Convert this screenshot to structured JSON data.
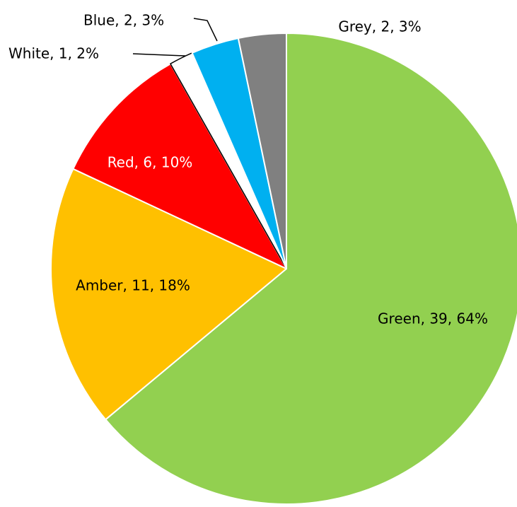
{
  "chart_data": {
    "type": "pie",
    "title": "",
    "start_angle_deg": 0,
    "direction": "clockwise",
    "slices": [
      {
        "category": "Green",
        "value": 39,
        "percent": "64%",
        "label": "Green, 39, 64%",
        "color": "#92d050",
        "label_color": "#000000"
      },
      {
        "category": "Amber",
        "value": 11,
        "percent": "18%",
        "label": "Amber, 11, 18%",
        "color": "#ffc000",
        "label_color": "#000000"
      },
      {
        "category": "Red",
        "value": 6,
        "percent": "10%",
        "label": "Red, 6, 10%",
        "color": "#ff0000",
        "label_color": "#ffffff"
      },
      {
        "category": "White",
        "value": 1,
        "percent": "2%",
        "label": "White, 1, 2%",
        "color": "#ffffff",
        "label_color": "#000000"
      },
      {
        "category": "Blue",
        "value": 2,
        "percent": "3%",
        "label": "Blue, 2, 3%",
        "color": "#00b0f0",
        "label_color": "#000000"
      },
      {
        "category": "Grey",
        "value": 2,
        "percent": "3%",
        "label": "Grey, 2, 3%",
        "color": "#808080",
        "label_color": "#000000"
      }
    ]
  }
}
